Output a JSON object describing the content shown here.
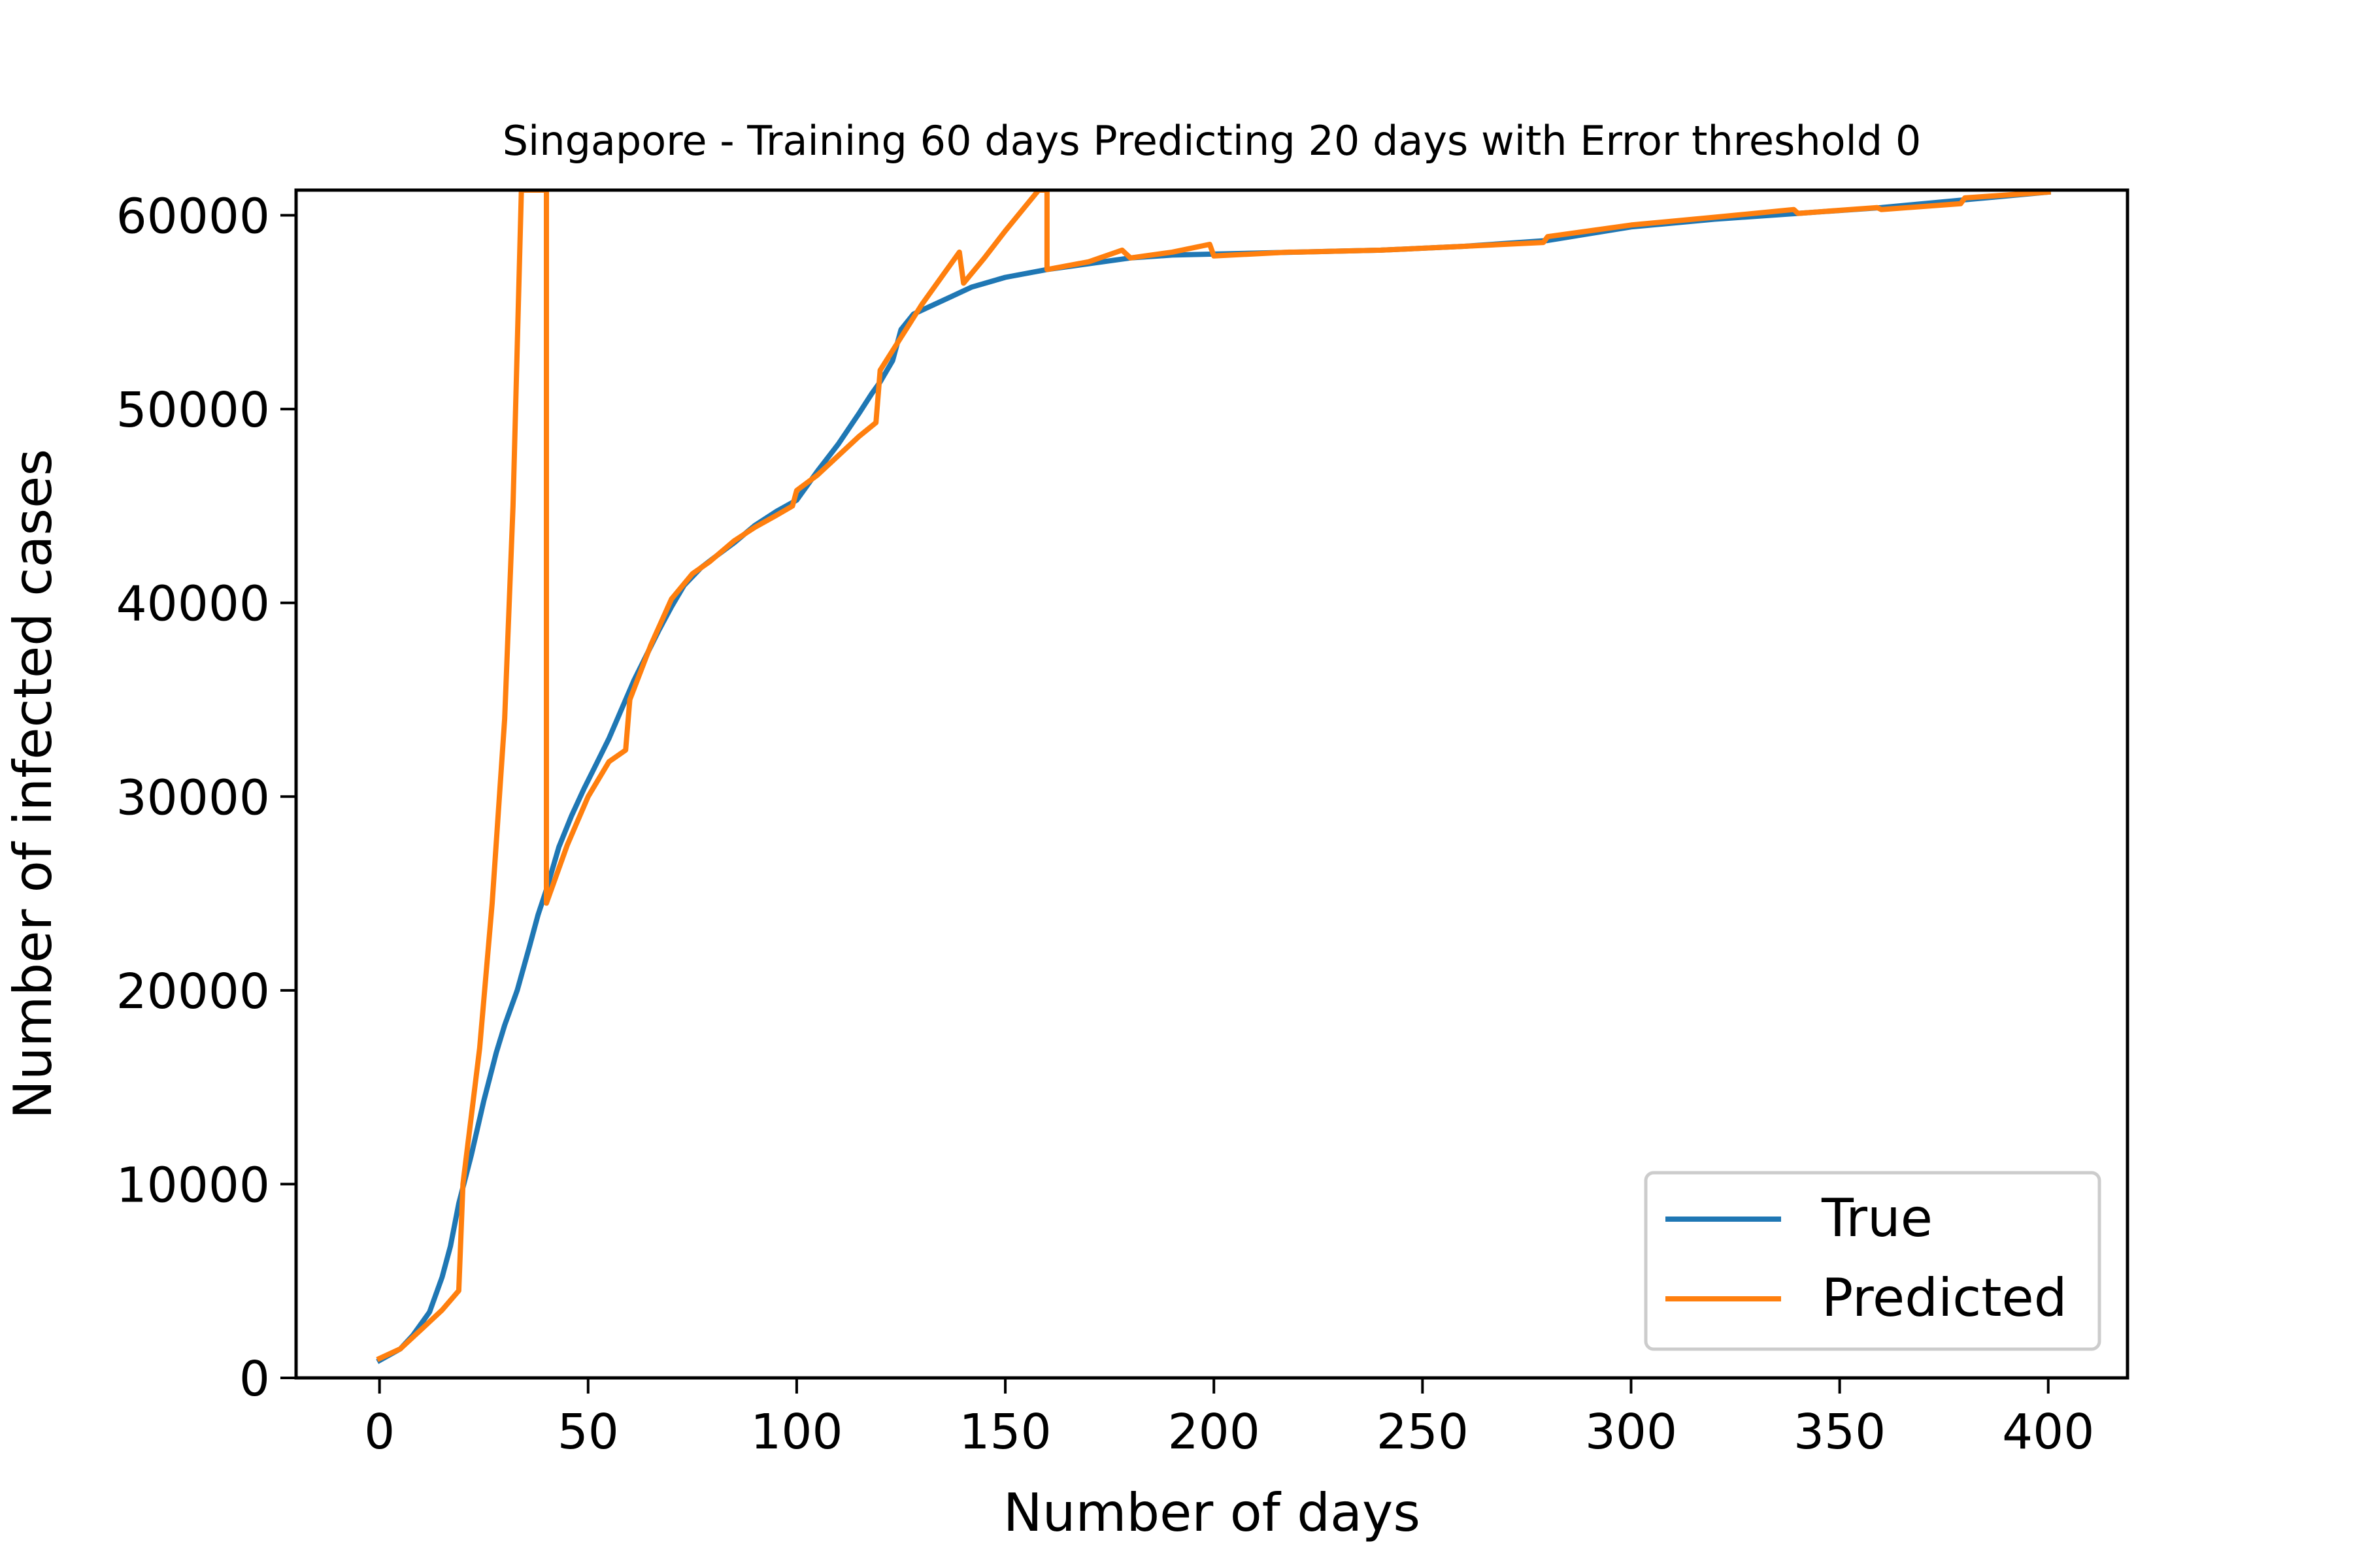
{
  "chart_data": {
    "type": "line",
    "title": "Singapore - Training 60 days Predicting 20 days with Error threshold 0",
    "xlabel": "Number of days",
    "ylabel": "Number of infected cases",
    "xlim": [
      -20,
      419
    ],
    "ylim": [
      0,
      61300
    ],
    "xticks": [
      0,
      50,
      100,
      150,
      200,
      250,
      300,
      350,
      400
    ],
    "yticks": [
      0,
      10000,
      20000,
      30000,
      40000,
      50000,
      60000
    ],
    "grid": false,
    "legend": {
      "position": "lower-right",
      "entries": [
        "True",
        "Predicted"
      ]
    },
    "series": [
      {
        "name": "True",
        "color": "#1f77b4",
        "points": [
          [
            0,
            900
          ],
          [
            5,
            1500
          ],
          [
            8,
            2200
          ],
          [
            12,
            3400
          ],
          [
            15,
            5200
          ],
          [
            17,
            6800
          ],
          [
            19,
            9000
          ],
          [
            22,
            11500
          ],
          [
            25,
            14300
          ],
          [
            28,
            16800
          ],
          [
            30,
            18200
          ],
          [
            33,
            20000
          ],
          [
            36,
            22300
          ],
          [
            38,
            23900
          ],
          [
            40,
            25200
          ],
          [
            43,
            27400
          ],
          [
            46,
            29000
          ],
          [
            49,
            30400
          ],
          [
            52,
            31700
          ],
          [
            55,
            33000
          ],
          [
            58,
            34500
          ],
          [
            61,
            36000
          ],
          [
            64,
            37300
          ],
          [
            67,
            38600
          ],
          [
            70,
            39800
          ],
          [
            73,
            40900
          ],
          [
            77,
            41800
          ],
          [
            80,
            42300
          ],
          [
            85,
            43100
          ],
          [
            90,
            44000
          ],
          [
            95,
            44700
          ],
          [
            100,
            45300
          ],
          [
            105,
            46800
          ],
          [
            110,
            48200
          ],
          [
            115,
            49800
          ],
          [
            118,
            50800
          ],
          [
            120,
            51400
          ],
          [
            123,
            52500
          ],
          [
            125,
            54100
          ],
          [
            128,
            54900
          ],
          [
            132,
            55300
          ],
          [
            137,
            55800
          ],
          [
            142,
            56300
          ],
          [
            150,
            56800
          ],
          [
            160,
            57200
          ],
          [
            170,
            57500
          ],
          [
            180,
            57800
          ],
          [
            190,
            57950
          ],
          [
            200,
            58000
          ],
          [
            220,
            58100
          ],
          [
            240,
            58200
          ],
          [
            260,
            58400
          ],
          [
            280,
            58700
          ],
          [
            300,
            59400
          ],
          [
            320,
            59800
          ],
          [
            340,
            60100
          ],
          [
            360,
            60400
          ],
          [
            380,
            60800
          ],
          [
            400,
            61200
          ]
        ]
      },
      {
        "name": "Predicted",
        "color": "#ff7f0e",
        "points": [
          [
            0,
            1000
          ],
          [
            5,
            1500
          ],
          [
            10,
            2500
          ],
          [
            15,
            3500
          ],
          [
            19,
            4500
          ],
          [
            20,
            10000
          ],
          [
            24,
            17000
          ],
          [
            27,
            24500
          ],
          [
            30,
            34000
          ],
          [
            32,
            45000
          ],
          [
            34,
            61300
          ],
          [
            40,
            61300
          ],
          [
            40,
            24500
          ],
          [
            45,
            27500
          ],
          [
            50,
            30000
          ],
          [
            55,
            31800
          ],
          [
            59,
            32400
          ],
          [
            60,
            35000
          ],
          [
            65,
            37800
          ],
          [
            70,
            40200
          ],
          [
            75,
            41500
          ],
          [
            79,
            42100
          ],
          [
            85,
            43200
          ],
          [
            90,
            43900
          ],
          [
            95,
            44500
          ],
          [
            99,
            45000
          ],
          [
            100,
            45800
          ],
          [
            105,
            46600
          ],
          [
            110,
            47600
          ],
          [
            115,
            48600
          ],
          [
            119,
            49300
          ],
          [
            120,
            52000
          ],
          [
            125,
            53700
          ],
          [
            130,
            55400
          ],
          [
            135,
            56900
          ],
          [
            139,
            58100
          ],
          [
            140,
            56500
          ],
          [
            145,
            57800
          ],
          [
            150,
            59200
          ],
          [
            158,
            61300
          ],
          [
            160,
            61300
          ],
          [
            160,
            57200
          ],
          [
            170,
            57600
          ],
          [
            178,
            58200
          ],
          [
            180,
            57800
          ],
          [
            190,
            58100
          ],
          [
            199,
            58500
          ],
          [
            200,
            57900
          ],
          [
            218,
            58100
          ],
          [
            220,
            58100
          ],
          [
            240,
            58200
          ],
          [
            260,
            58400
          ],
          [
            279,
            58600
          ],
          [
            280,
            58900
          ],
          [
            300,
            59500
          ],
          [
            320,
            59900
          ],
          [
            339,
            60300
          ],
          [
            340,
            60100
          ],
          [
            359,
            60400
          ],
          [
            360,
            60300
          ],
          [
            379,
            60600
          ],
          [
            380,
            60900
          ],
          [
            400,
            61200
          ]
        ]
      }
    ]
  }
}
